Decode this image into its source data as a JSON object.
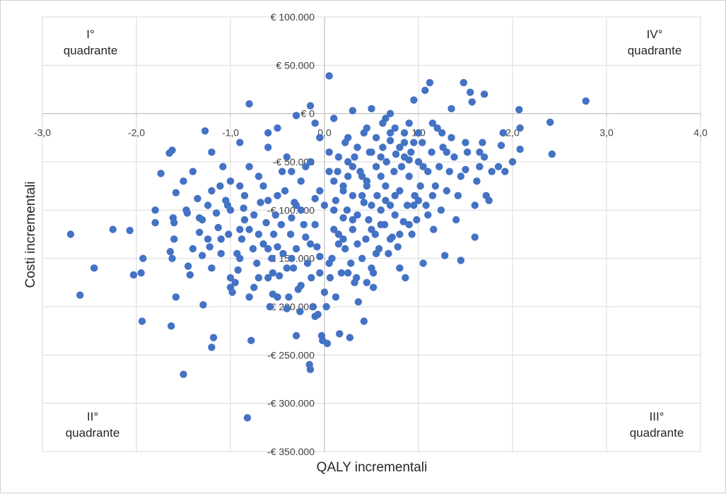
{
  "chart_data": {
    "type": "scatter",
    "title": "",
    "xlabel": "QALY incrementali",
    "ylabel": "Costi incrementali",
    "xlim": [
      -3.0,
      4.0
    ],
    "ylim": [
      -350000,
      100000
    ],
    "x_ticks": [
      -3,
      -2,
      -1,
      0,
      1,
      2,
      3,
      4
    ],
    "x_tick_labels": [
      "-3,0",
      "-2,0",
      "-1,0",
      "0,0",
      "1,0",
      "2,0",
      "3,0",
      "4,0"
    ],
    "y_ticks": [
      100000,
      50000,
      0,
      -50000,
      -100000,
      -150000,
      -200000,
      -250000,
      -300000,
      -350000
    ],
    "y_tick_labels": [
      "€ 100.000",
      "€ 50.000",
      "€ 0",
      "-€ 50.000",
      "-€ 100.000",
      "-€ 150.000",
      "-€ 200.000",
      "-€ 250.000",
      "-€ 300.000",
      "-€ 350.000"
    ],
    "grid": true,
    "legend": "none",
    "marker_color": "#4472C4",
    "quadrant_labels": {
      "top_left": "I° quadrante",
      "top_right": "IV° quadrante",
      "bottom_left": "II° quadrante",
      "bottom_right": "III° quadrante"
    },
    "points": [
      [
        -2.7,
        -125000
      ],
      [
        -2.6,
        -188000
      ],
      [
        -2.45,
        -160000
      ],
      [
        -2.25,
        -120000
      ],
      [
        -2.07,
        -121000
      ],
      [
        -2.03,
        -167000
      ],
      [
        -1.95,
        -165000
      ],
      [
        -1.94,
        -215000
      ],
      [
        -1.93,
        -150000
      ],
      [
        -1.8,
        -100000
      ],
      [
        -1.8,
        -113000
      ],
      [
        -1.74,
        -62000
      ],
      [
        -1.65,
        -41000
      ],
      [
        -1.62,
        -38000
      ],
      [
        -1.64,
        -143000
      ],
      [
        -1.62,
        -150000
      ],
      [
        -1.61,
        -108000
      ],
      [
        -1.6,
        -113000
      ],
      [
        -1.58,
        -82000
      ],
      [
        -1.63,
        -220000
      ],
      [
        -1.58,
        -190000
      ],
      [
        -1.5,
        -70000
      ],
      [
        -1.47,
        -100000
      ],
      [
        -1.46,
        -103000
      ],
      [
        -1.45,
        -158000
      ],
      [
        -1.43,
        -167000
      ],
      [
        -1.5,
        -270000
      ],
      [
        -1.35,
        -88000
      ],
      [
        -1.33,
        -108000
      ],
      [
        -1.33,
        -123000
      ],
      [
        -1.3,
        -147000
      ],
      [
        -1.29,
        -198000
      ],
      [
        -1.27,
        -18000
      ],
      [
        -1.24,
        -95000
      ],
      [
        -1.24,
        -130000
      ],
      [
        -1.22,
        -138000
      ],
      [
        -1.2,
        -242000
      ],
      [
        -1.18,
        -232000
      ],
      [
        -1.15,
        -103000
      ],
      [
        -1.13,
        -118000
      ],
      [
        -1.11,
        -75000
      ],
      [
        -1.1,
        -145000
      ],
      [
        -1.08,
        -55000
      ],
      [
        -1.03,
        -95000
      ],
      [
        -1.02,
        -125000
      ],
      [
        -1.0,
        -180000
      ],
      [
        -0.98,
        -185000
      ],
      [
        -0.95,
        -175000
      ],
      [
        -0.93,
        -145000
      ],
      [
        -0.92,
        -162000
      ],
      [
        -0.9,
        -120000
      ],
      [
        -0.88,
        -130000
      ],
      [
        -0.86,
        -98000
      ],
      [
        -0.85,
        -110000
      ],
      [
        -0.82,
        -315000
      ],
      [
        -0.8,
        10000
      ],
      [
        -0.78,
        -235000
      ],
      [
        -0.76,
        -140000
      ],
      [
        -0.75,
        -105000
      ],
      [
        -0.72,
        -155000
      ],
      [
        -0.7,
        -125000
      ],
      [
        -0.68,
        -92000
      ],
      [
        -0.65,
        -135000
      ],
      [
        -0.62,
        -113000
      ],
      [
        -0.6,
        -90000
      ],
      [
        -0.6,
        -170000
      ],
      [
        -0.58,
        -200000
      ],
      [
        -0.56,
        -150000
      ],
      [
        -0.55,
        -187000
      ],
      [
        -0.54,
        -125000
      ],
      [
        -0.52,
        -105000
      ],
      [
        -0.5,
        -138000
      ],
      [
        -0.48,
        -168000
      ],
      [
        -0.46,
        -115000
      ],
      [
        -0.44,
        -145000
      ],
      [
        -0.42,
        -80000
      ],
      [
        -0.4,
        -202000
      ],
      [
        -0.38,
        -190000
      ],
      [
        -0.36,
        -125000
      ],
      [
        -0.35,
        -108000
      ],
      [
        -0.33,
        -160000
      ],
      [
        -0.32,
        -92000
      ],
      [
        -0.3,
        -140000
      ],
      [
        -0.28,
        -182000
      ],
      [
        -0.26,
        -205000
      ],
      [
        -0.25,
        -100000
      ],
      [
        -0.22,
        -115000
      ],
      [
        -0.2,
        -128000
      ],
      [
        -0.18,
        -155000
      ],
      [
        -0.16,
        -260000
      ],
      [
        -0.15,
        -265000
      ],
      [
        -0.14,
        -170000
      ],
      [
        -0.12,
        -200000
      ],
      [
        -0.1,
        -88000
      ],
      [
        -0.08,
        -138000
      ],
      [
        -0.07,
        -208000
      ],
      [
        -0.05,
        -148000
      ],
      [
        -0.03,
        -230000
      ],
      [
        -0.02,
        -235000
      ],
      [
        0.0,
        -185000
      ],
      [
        0.02,
        -200000
      ],
      [
        0.03,
        -238000
      ],
      [
        0.05,
        39000
      ],
      [
        0.06,
        -170000
      ],
      [
        0.08,
        -150000
      ],
      [
        0.1,
        -120000
      ],
      [
        0.12,
        -90000
      ],
      [
        0.14,
        -60000
      ],
      [
        0.15,
        -135000
      ],
      [
        0.16,
        -228000
      ],
      [
        0.18,
        -165000
      ],
      [
        0.2,
        -108000
      ],
      [
        0.2,
        -75000
      ],
      [
        0.22,
        -140000
      ],
      [
        0.24,
        -100000
      ],
      [
        0.25,
        -65000
      ],
      [
        0.27,
        -232000
      ],
      [
        0.28,
        -155000
      ],
      [
        0.3,
        -120000
      ],
      [
        0.3,
        -85000
      ],
      [
        0.32,
        -45000
      ],
      [
        0.34,
        -170000
      ],
      [
        0.35,
        -105000
      ],
      [
        0.36,
        -195000
      ],
      [
        0.38,
        -60000
      ],
      [
        0.4,
        -150000
      ],
      [
        0.42,
        -92000
      ],
      [
        0.42,
        -215000
      ],
      [
        0.44,
        -130000
      ],
      [
        0.45,
        -75000
      ],
      [
        0.47,
        -110000
      ],
      [
        0.48,
        -40000
      ],
      [
        0.5,
        -160000
      ],
      [
        0.5,
        -95000
      ],
      [
        0.52,
        -180000
      ],
      [
        0.54,
        -125000
      ],
      [
        0.55,
        -55000
      ],
      [
        0.56,
        -85000
      ],
      [
        0.58,
        -140000
      ],
      [
        0.6,
        -100000
      ],
      [
        0.6,
        -65000
      ],
      [
        0.62,
        -35000
      ],
      [
        0.64,
        -115000
      ],
      [
        0.65,
        -75000
      ],
      [
        0.66,
        -50000
      ],
      [
        0.68,
        -145000
      ],
      [
        0.7,
        -95000
      ],
      [
        0.7,
        -20000
      ],
      [
        0.72,
        -128000
      ],
      [
        0.74,
        -60000
      ],
      [
        0.75,
        -105000
      ],
      [
        0.76,
        -42000
      ],
      [
        0.78,
        -138000
      ],
      [
        0.8,
        -80000
      ],
      [
        0.8,
        -160000
      ],
      [
        0.82,
        -55000
      ],
      [
        0.84,
        -112000
      ],
      [
        0.85,
        -30000
      ],
      [
        0.86,
        -170000
      ],
      [
        0.88,
        -95000
      ],
      [
        0.9,
        -65000
      ],
      [
        0.92,
        -40000
      ],
      [
        0.93,
        -125000
      ],
      [
        0.95,
        14000
      ],
      [
        0.96,
        -85000
      ],
      [
        0.98,
        -110000
      ],
      [
        1.0,
        -50000
      ],
      [
        1.02,
        -75000
      ],
      [
        1.04,
        -30000
      ],
      [
        1.05,
        -155000
      ],
      [
        1.07,
        24000
      ],
      [
        1.08,
        -95000
      ],
      [
        1.1,
        -60000
      ],
      [
        1.12,
        32000
      ],
      [
        1.14,
        -40000
      ],
      [
        1.16,
        -120000
      ],
      [
        1.18,
        -75000
      ],
      [
        1.2,
        -15000
      ],
      [
        1.22,
        -55000
      ],
      [
        1.24,
        -100000
      ],
      [
        1.26,
        -35000
      ],
      [
        1.28,
        -147000
      ],
      [
        1.3,
        -80000
      ],
      [
        1.33,
        -60000
      ],
      [
        1.35,
        -25000
      ],
      [
        1.38,
        -45000
      ],
      [
        1.4,
        -110000
      ],
      [
        1.42,
        -85000
      ],
      [
        1.45,
        -152000
      ],
      [
        1.48,
        32000
      ],
      [
        1.5,
        -58000
      ],
      [
        1.52,
        -40000
      ],
      [
        1.55,
        22000
      ],
      [
        1.57,
        12000
      ],
      [
        1.6,
        -95000
      ],
      [
        1.6,
        -128000
      ],
      [
        1.62,
        -70000
      ],
      [
        1.65,
        -55000
      ],
      [
        1.68,
        -30000
      ],
      [
        1.7,
        20000
      ],
      [
        1.72,
        -85000
      ],
      [
        1.75,
        -90000
      ],
      [
        1.78,
        -60000
      ],
      [
        1.85,
        -55000
      ],
      [
        1.88,
        -33000
      ],
      [
        1.92,
        -60000
      ],
      [
        2.0,
        -50000
      ],
      [
        2.07,
        4000
      ],
      [
        2.08,
        -15000
      ],
      [
        2.08,
        -37000
      ],
      [
        2.4,
        -9000
      ],
      [
        2.42,
        -42000
      ],
      [
        2.78,
        13000
      ],
      [
        1.0,
        -20000
      ],
      [
        0.9,
        -10000
      ],
      [
        0.7,
        0
      ],
      [
        0.5,
        5000
      ],
      [
        0.3,
        3000
      ],
      [
        0.1,
        -5000
      ],
      [
        -0.1,
        -10000
      ],
      [
        -0.3,
        -2000
      ],
      [
        -0.5,
        -15000
      ],
      [
        -0.15,
        8000
      ],
      [
        0.25,
        -25000
      ],
      [
        0.45,
        -15000
      ],
      [
        0.65,
        -5000
      ],
      [
        0.85,
        -20000
      ],
      [
        1.15,
        -10000
      ],
      [
        1.35,
        5000
      ],
      [
        0.15,
        -45000
      ],
      [
        0.35,
        -35000
      ],
      [
        0.55,
        -25000
      ],
      [
        0.75,
        -15000
      ],
      [
        0.95,
        -30000
      ],
      [
        1.25,
        -20000
      ],
      [
        -0.2,
        -55000
      ],
      [
        -0.4,
        -45000
      ],
      [
        -0.6,
        -35000
      ],
      [
        -0.8,
        -55000
      ],
      [
        -1.0,
        -70000
      ],
      [
        0.05,
        -60000
      ],
      [
        0.25,
        -50000
      ],
      [
        0.45,
        -70000
      ],
      [
        0.65,
        -90000
      ],
      [
        0.85,
        -45000
      ],
      [
        1.05,
        -55000
      ],
      [
        1.45,
        -65000
      ],
      [
        1.65,
        -40000
      ],
      [
        -0.05,
        -80000
      ],
      [
        -0.25,
        -70000
      ],
      [
        -0.45,
        -60000
      ],
      [
        -0.65,
        -75000
      ],
      [
        -0.85,
        -85000
      ],
      [
        -1.05,
        -90000
      ],
      [
        0.1,
        -100000
      ],
      [
        0.3,
        -110000
      ],
      [
        0.5,
        -120000
      ],
      [
        0.7,
        -130000
      ],
      [
        0.9,
        -115000
      ],
      [
        1.1,
        -105000
      ],
      [
        -0.1,
        -115000
      ],
      [
        -0.3,
        -95000
      ],
      [
        -0.5,
        -85000
      ],
      [
        -0.7,
        -65000
      ],
      [
        -0.9,
        -75000
      ],
      [
        0.15,
        -125000
      ],
      [
        0.35,
        -135000
      ],
      [
        0.55,
        -145000
      ],
      [
        0.75,
        -85000
      ],
      [
        0.95,
        -95000
      ],
      [
        1.15,
        -85000
      ],
      [
        -0.15,
        -135000
      ],
      [
        -0.35,
        -150000
      ],
      [
        -0.55,
        -165000
      ],
      [
        -0.75,
        -180000
      ],
      [
        0.05,
        -155000
      ],
      [
        0.25,
        -165000
      ],
      [
        0.45,
        -175000
      ],
      [
        -0.05,
        -165000
      ],
      [
        -0.25,
        -178000
      ],
      [
        0.2,
        -130000
      ],
      [
        0.4,
        -85000
      ],
      [
        0.6,
        -115000
      ],
      [
        0.8,
        -125000
      ],
      [
        1.0,
        -90000
      ],
      [
        0.0,
        -95000
      ],
      [
        0.2,
        -80000
      ],
      [
        0.4,
        -65000
      ],
      [
        0.6,
        -45000
      ],
      [
        0.8,
        -35000
      ],
      [
        0.1,
        -70000
      ],
      [
        0.3,
        -55000
      ],
      [
        0.5,
        -40000
      ],
      [
        0.7,
        -28000
      ],
      [
        0.9,
        -48000
      ],
      [
        1.3,
        -40000
      ],
      [
        1.5,
        -30000
      ],
      [
        1.7,
        -45000
      ],
      [
        1.9,
        -20000
      ],
      [
        -1.4,
        -60000
      ],
      [
        -1.2,
        -80000
      ],
      [
        -1.0,
        -100000
      ],
      [
        -0.8,
        -120000
      ],
      [
        -0.6,
        -140000
      ],
      [
        -0.4,
        -160000
      ],
      [
        -1.3,
        -110000
      ],
      [
        -1.1,
        -130000
      ],
      [
        -0.9,
        -150000
      ],
      [
        -0.7,
        -170000
      ],
      [
        -0.5,
        -190000
      ],
      [
        -1.6,
        -130000
      ],
      [
        -1.4,
        -140000
      ],
      [
        -1.2,
        -160000
      ],
      [
        -1.0,
        -170000
      ],
      [
        -0.8,
        -190000
      ],
      [
        -0.3,
        -230000
      ],
      [
        -0.1,
        -210000
      ],
      [
        0.12,
        -190000
      ],
      [
        0.32,
        -175000
      ],
      [
        0.52,
        -165000
      ],
      [
        -0.35,
        -60000
      ],
      [
        -0.15,
        -50000
      ],
      [
        0.05,
        -40000
      ],
      [
        0.22,
        -30000
      ],
      [
        0.42,
        -20000
      ],
      [
        -0.6,
        -20000
      ],
      [
        -0.9,
        -30000
      ],
      [
        -1.2,
        -40000
      ],
      [
        -0.05,
        -25000
      ],
      [
        0.62,
        -10000
      ]
    ]
  }
}
